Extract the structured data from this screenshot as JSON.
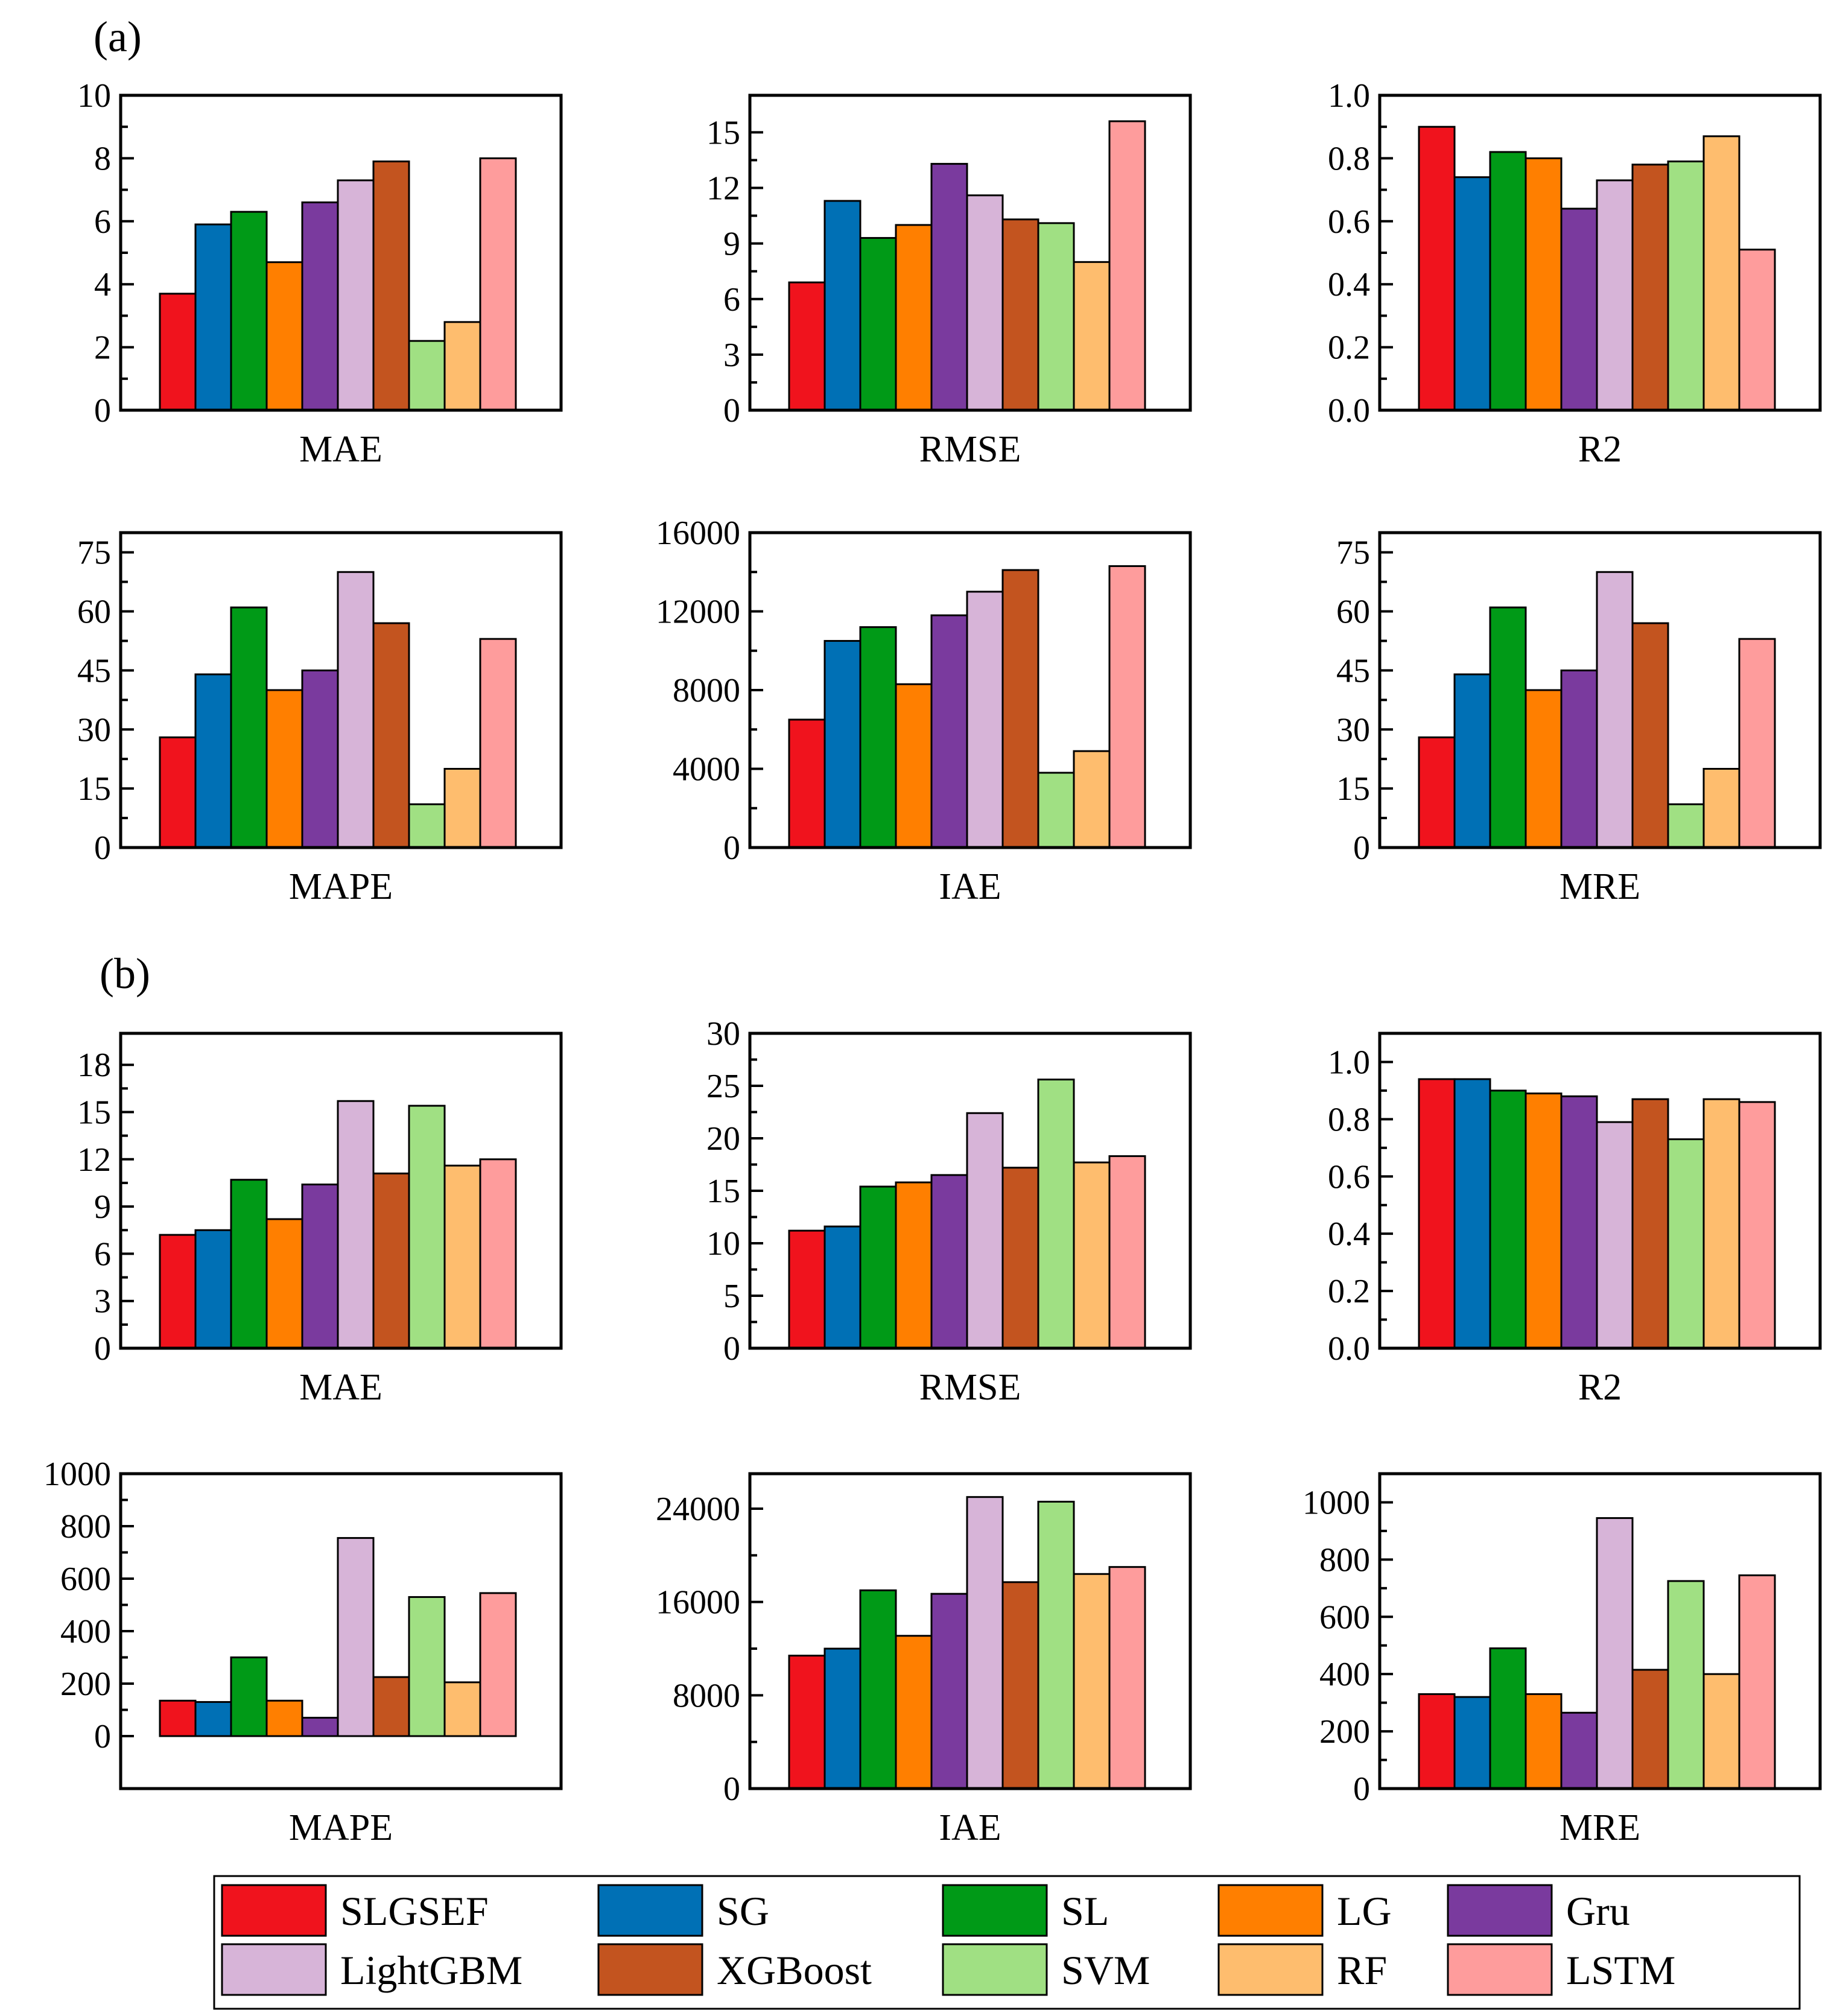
{
  "figure": {
    "panel_labels": [
      "(a)",
      "(b)"
    ],
    "models": [
      "SLGSEF",
      "SG",
      "SL",
      "LG",
      "Gru",
      "LightGBM",
      "XGBoost",
      "SVM",
      "RF",
      "LSTM"
    ],
    "colors": [
      "#f0131d",
      "#0070b5",
      "#009a17",
      "#ff7f00",
      "#7a3a9e",
      "#d7b4d8",
      "#c3541f",
      "#a0e083",
      "#febd6e",
      "#fe9c9c"
    ]
  },
  "legend": {
    "items": [
      {
        "label": "SLGSEF",
        "color": "#f0131d"
      },
      {
        "label": "SG",
        "color": "#0070b5"
      },
      {
        "label": "SL",
        "color": "#009a17"
      },
      {
        "label": "LG",
        "color": "#ff7f00"
      },
      {
        "label": "Gru",
        "color": "#7a3a9e"
      },
      {
        "label": "LightGBM",
        "color": "#d7b4d8"
      },
      {
        "label": "XGBoost",
        "color": "#c3541f"
      },
      {
        "label": "SVM",
        "color": "#a0e083"
      },
      {
        "label": "RF",
        "color": "#febd6e"
      },
      {
        "label": "LSTM",
        "color": "#fe9c9c"
      }
    ]
  },
  "chart_data": [
    {
      "panel": "(a)",
      "type": "bar",
      "title": "MAE",
      "xlabel": "MAE",
      "categories": [
        "SLGSEF",
        "SG",
        "SL",
        "LG",
        "Gru",
        "LightGBM",
        "XGBoost",
        "SVM",
        "RF",
        "LSTM"
      ],
      "values": [
        3.7,
        5.9,
        6.3,
        4.7,
        6.6,
        7.3,
        7.9,
        2.2,
        2.8,
        8.0
      ],
      "ylim": [
        0,
        10
      ],
      "yticks": [
        0,
        2,
        4,
        6,
        8,
        10
      ],
      "ytick_labels": [
        "0",
        "2",
        "4",
        "6",
        "8",
        "10"
      ]
    },
    {
      "panel": "(a)",
      "type": "bar",
      "title": "RMSE",
      "xlabel": "RMSE",
      "categories": [
        "SLGSEF",
        "SG",
        "SL",
        "LG",
        "Gru",
        "LightGBM",
        "XGBoost",
        "SVM",
        "RF",
        "LSTM"
      ],
      "values": [
        6.9,
        11.3,
        9.3,
        10.0,
        13.3,
        11.6,
        10.3,
        10.1,
        8.0,
        15.6
      ],
      "ylim": [
        0,
        17
      ],
      "yticks": [
        0,
        3,
        6,
        9,
        12,
        15
      ],
      "ytick_labels": [
        "0",
        "3",
        "6",
        "9",
        "12",
        "15"
      ]
    },
    {
      "panel": "(a)",
      "type": "bar",
      "title": "R2",
      "xlabel": "R2",
      "categories": [
        "SLGSEF",
        "SG",
        "SL",
        "LG",
        "Gru",
        "LightGBM",
        "XGBoost",
        "SVM",
        "RF",
        "LSTM"
      ],
      "values": [
        0.9,
        0.74,
        0.82,
        0.8,
        0.64,
        0.73,
        0.78,
        0.79,
        0.87,
        0.51
      ],
      "ylim": [
        0,
        1.0
      ],
      "yticks": [
        0,
        0.2,
        0.4,
        0.6,
        0.8,
        1.0
      ],
      "ytick_labels": [
        "0.0",
        "0.2",
        "0.4",
        "0.6",
        "0.8",
        "1.0"
      ]
    },
    {
      "panel": "(a)",
      "type": "bar",
      "title": "MAPE",
      "xlabel": "MAPE",
      "categories": [
        "SLGSEF",
        "SG",
        "SL",
        "LG",
        "Gru",
        "LightGBM",
        "XGBoost",
        "SVM",
        "RF",
        "LSTM"
      ],
      "values": [
        28,
        44,
        61,
        40,
        45,
        70,
        57,
        11,
        20,
        53
      ],
      "ylim": [
        0,
        80
      ],
      "yticks": [
        0,
        15,
        30,
        45,
        60,
        75
      ],
      "ytick_labels": [
        "0",
        "15",
        "30",
        "45",
        "60",
        "75"
      ]
    },
    {
      "panel": "(a)",
      "type": "bar",
      "title": "IAE",
      "xlabel": "IAE",
      "categories": [
        "SLGSEF",
        "SG",
        "SL",
        "LG",
        "Gru",
        "LightGBM",
        "XGBoost",
        "SVM",
        "RF",
        "LSTM"
      ],
      "values": [
        6500,
        10500,
        11200,
        8300,
        11800,
        13000,
        14100,
        3800,
        4900,
        14300
      ],
      "ylim": [
        0,
        16000
      ],
      "yticks": [
        0,
        4000,
        8000,
        12000,
        16000
      ],
      "ytick_labels": [
        "0",
        "4000",
        "8000",
        "12000",
        "16000"
      ]
    },
    {
      "panel": "(a)",
      "type": "bar",
      "title": "MRE",
      "xlabel": "MRE",
      "categories": [
        "SLGSEF",
        "SG",
        "SL",
        "LG",
        "Gru",
        "LightGBM",
        "XGBoost",
        "SVM",
        "RF",
        "LSTM"
      ],
      "values": [
        28,
        44,
        61,
        40,
        45,
        70,
        57,
        11,
        20,
        53
      ],
      "ylim": [
        0,
        80
      ],
      "yticks": [
        0,
        15,
        30,
        45,
        60,
        75
      ],
      "ytick_labels": [
        "0",
        "15",
        "30",
        "45",
        "60",
        "75"
      ]
    },
    {
      "panel": "(b)",
      "type": "bar",
      "title": "MAE",
      "xlabel": "MAE",
      "categories": [
        "SLGSEF",
        "SG",
        "SL",
        "LG",
        "Gru",
        "LightGBM",
        "XGBoost",
        "SVM",
        "RF",
        "LSTM"
      ],
      "values": [
        7.2,
        7.5,
        10.7,
        8.2,
        10.4,
        15.7,
        11.1,
        15.4,
        11.6,
        12.0
      ],
      "ylim": [
        0,
        20
      ],
      "yticks": [
        0,
        3,
        6,
        9,
        12,
        15,
        18
      ],
      "ytick_labels": [
        "0",
        "3",
        "6",
        "9",
        "12",
        "15",
        "18"
      ]
    },
    {
      "panel": "(b)",
      "type": "bar",
      "title": "RMSE",
      "xlabel": "RMSE",
      "categories": [
        "SLGSEF",
        "SG",
        "SL",
        "LG",
        "Gru",
        "LightGBM",
        "XGBoost",
        "SVM",
        "RF",
        "LSTM"
      ],
      "values": [
        11.2,
        11.6,
        15.4,
        15.8,
        16.5,
        22.4,
        17.2,
        25.6,
        17.7,
        18.3
      ],
      "ylim": [
        0,
        30
      ],
      "yticks": [
        0,
        5,
        10,
        15,
        20,
        25,
        30
      ],
      "ytick_labels": [
        "0",
        "5",
        "10",
        "15",
        "20",
        "25",
        "30"
      ]
    },
    {
      "panel": "(b)",
      "type": "bar",
      "title": "R2",
      "xlabel": "R2",
      "categories": [
        "SLGSEF",
        "SG",
        "SL",
        "LG",
        "Gru",
        "LightGBM",
        "XGBoost",
        "SVM",
        "RF",
        "LSTM"
      ],
      "values": [
        0.94,
        0.94,
        0.9,
        0.89,
        0.88,
        0.79,
        0.87,
        0.73,
        0.87,
        0.86
      ],
      "ylim": [
        0,
        1.1
      ],
      "yticks": [
        0,
        0.2,
        0.4,
        0.6,
        0.8,
        1.0
      ],
      "ytick_labels": [
        "0.0",
        "0.2",
        "0.4",
        "0.6",
        "0.8",
        "1.0"
      ]
    },
    {
      "panel": "(b)",
      "type": "bar",
      "title": "MAPE",
      "xlabel": "MAPE",
      "categories": [
        "SLGSEF",
        "SG",
        "SL",
        "LG",
        "Gru",
        "LightGBM",
        "XGBoost",
        "SVM",
        "RF",
        "LSTM"
      ],
      "values": [
        135,
        130,
        300,
        135,
        70,
        755,
        225,
        530,
        205,
        545
      ],
      "ylim": [
        -200,
        1000
      ],
      "yticks": [
        0,
        200,
        400,
        600,
        800,
        1000
      ],
      "ytick_labels": [
        "0",
        "200",
        "400",
        "600",
        "800",
        "1000"
      ]
    },
    {
      "panel": "(b)",
      "type": "bar",
      "title": "IAE",
      "xlabel": "IAE",
      "categories": [
        "SLGSEF",
        "SG",
        "SL",
        "LG",
        "Gru",
        "LightGBM",
        "XGBoost",
        "SVM",
        "RF",
        "LSTM"
      ],
      "values": [
        11400,
        12000,
        17000,
        13100,
        16700,
        25000,
        17700,
        24600,
        18400,
        19000
      ],
      "ylim": [
        0,
        27000
      ],
      "yticks": [
        0,
        8000,
        16000,
        24000
      ],
      "ytick_labels": [
        "0",
        "8000",
        "16000",
        "24000"
      ]
    },
    {
      "panel": "(b)",
      "type": "bar",
      "title": "MRE",
      "xlabel": "MRE",
      "categories": [
        "SLGSEF",
        "SG",
        "SL",
        "LG",
        "Gru",
        "LightGBM",
        "XGBoost",
        "SVM",
        "RF",
        "LSTM"
      ],
      "values": [
        330,
        320,
        490,
        330,
        265,
        945,
        415,
        725,
        400,
        745
      ],
      "ylim": [
        0,
        1100
      ],
      "yticks": [
        0,
        200,
        400,
        600,
        800,
        1000
      ],
      "ytick_labels": [
        "0",
        "200",
        "400",
        "600",
        "800",
        "1000"
      ]
    }
  ]
}
